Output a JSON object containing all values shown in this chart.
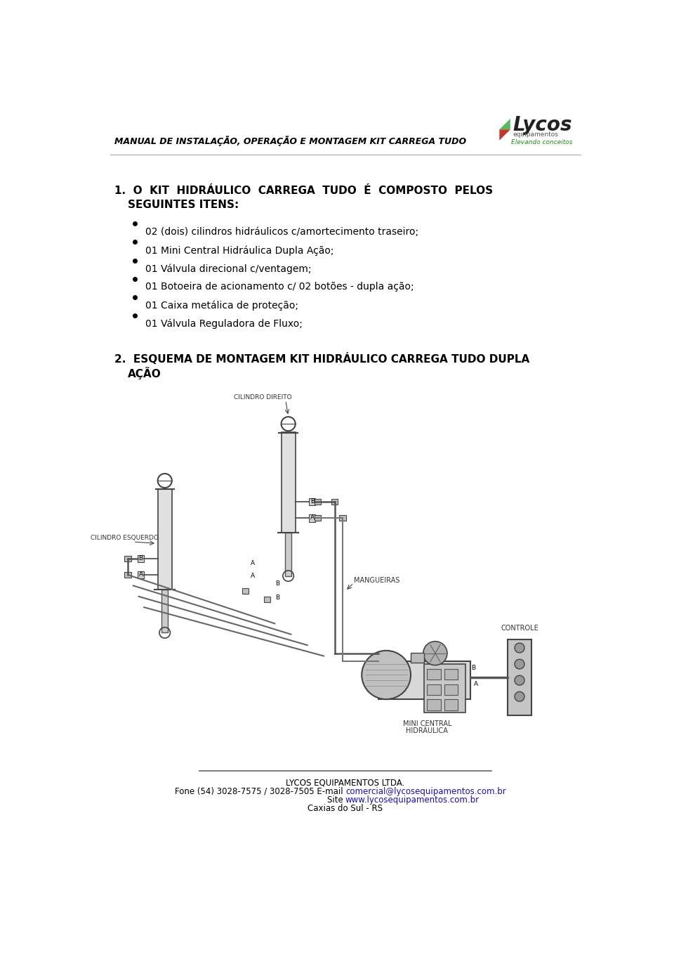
{
  "bg_color": "#ffffff",
  "header_text": "MANUAL DE INSTALAÇÃO, OPERAÇÃO E MONTAGEM KIT CARREGA TUDO",
  "bullet_items": [
    "02 (dois) cilindros hidráulicos c/amortecimento traseiro;",
    "01 Mini Central Hidráulica Dupla Ação;",
    "01 Válvula direcional c/ventagem;",
    "01 Botoeira de acionamento c/ 02 botões - dupla ação;",
    "01 Caixa metálica de proteção;",
    "01 Válvula Reguladora de Fluxo;"
  ],
  "footer_company": "LYCOS EQUIPAMENTOS LTDA.",
  "footer_phone_prefix": "Fone (54) 3028-7575 / 3028-7505 E-mail ",
  "footer_email": "comercial@lycosequipamentos.com.br",
  "footer_site_prefix": "Site ",
  "footer_site": "www.lycosequipamentos.com.br",
  "footer_city": "Caxias do Sul - RS",
  "header_fontsize": 9,
  "title_fontsize": 11,
  "bullet_fontsize": 10,
  "footer_fontsize": 8.5
}
